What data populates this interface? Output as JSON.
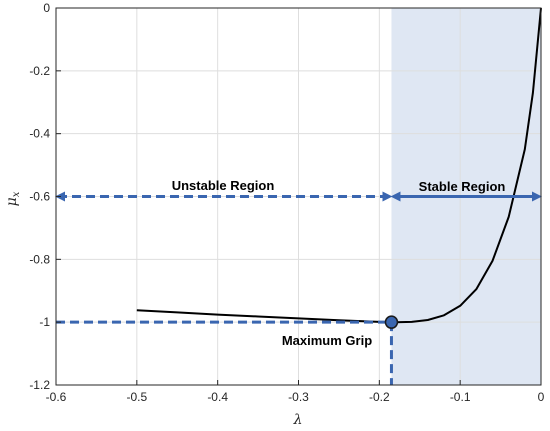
{
  "chart_data": {
    "type": "line",
    "title": "",
    "xlabel": "λ",
    "ylabel": "μ",
    "ylabel_subscript": "x",
    "xlim": [
      -0.6,
      0
    ],
    "ylim": [
      -1.2,
      0
    ],
    "xticks": [
      -0.6,
      -0.5,
      -0.4,
      -0.3,
      -0.2,
      -0.1,
      0
    ],
    "yticks": [
      -1.2,
      -1,
      -0.8,
      -0.6,
      -0.4,
      -0.2,
      0
    ],
    "xtick_labels": [
      "-0.6",
      "-0.5",
      "-0.4",
      "-0.3",
      "-0.2",
      "-0.1",
      "0"
    ],
    "ytick_labels": [
      "-1.2",
      "-1",
      "-0.8",
      "-0.6",
      "-0.4",
      "-0.2",
      "0"
    ],
    "grid": true,
    "series": [
      {
        "x": [
          -0.5,
          -0.45,
          -0.4,
          -0.35,
          -0.3,
          -0.25,
          -0.2,
          -0.18,
          -0.16,
          -0.14,
          -0.12,
          -0.1,
          -0.08,
          -0.06,
          -0.04,
          -0.02,
          -0.01,
          0
        ],
        "y": [
          -0.962,
          -0.969,
          -0.976,
          -0.982,
          -0.988,
          -0.994,
          -0.999,
          -1.0,
          -0.999,
          -0.993,
          -0.978,
          -0.948,
          -0.895,
          -0.805,
          -0.665,
          -0.45,
          -0.27,
          0
        ]
      }
    ],
    "stable_region": {
      "x_range": [
        -0.185,
        0
      ],
      "color": "#dfe7f3"
    },
    "max_grip_point": {
      "x": -0.185,
      "y": -1.0
    },
    "annotations": {
      "unstable_label": "Unstable Region",
      "stable_label": "Stable Region",
      "max_grip_label": "Maximum Grip"
    },
    "arrow_y": -0.6,
    "colors": {
      "curve": "#000000",
      "arrows": "#3a66b0",
      "point_fill": "#3a66b0",
      "point_stroke": "#1a1a1a",
      "grid": "#dedede"
    }
  }
}
